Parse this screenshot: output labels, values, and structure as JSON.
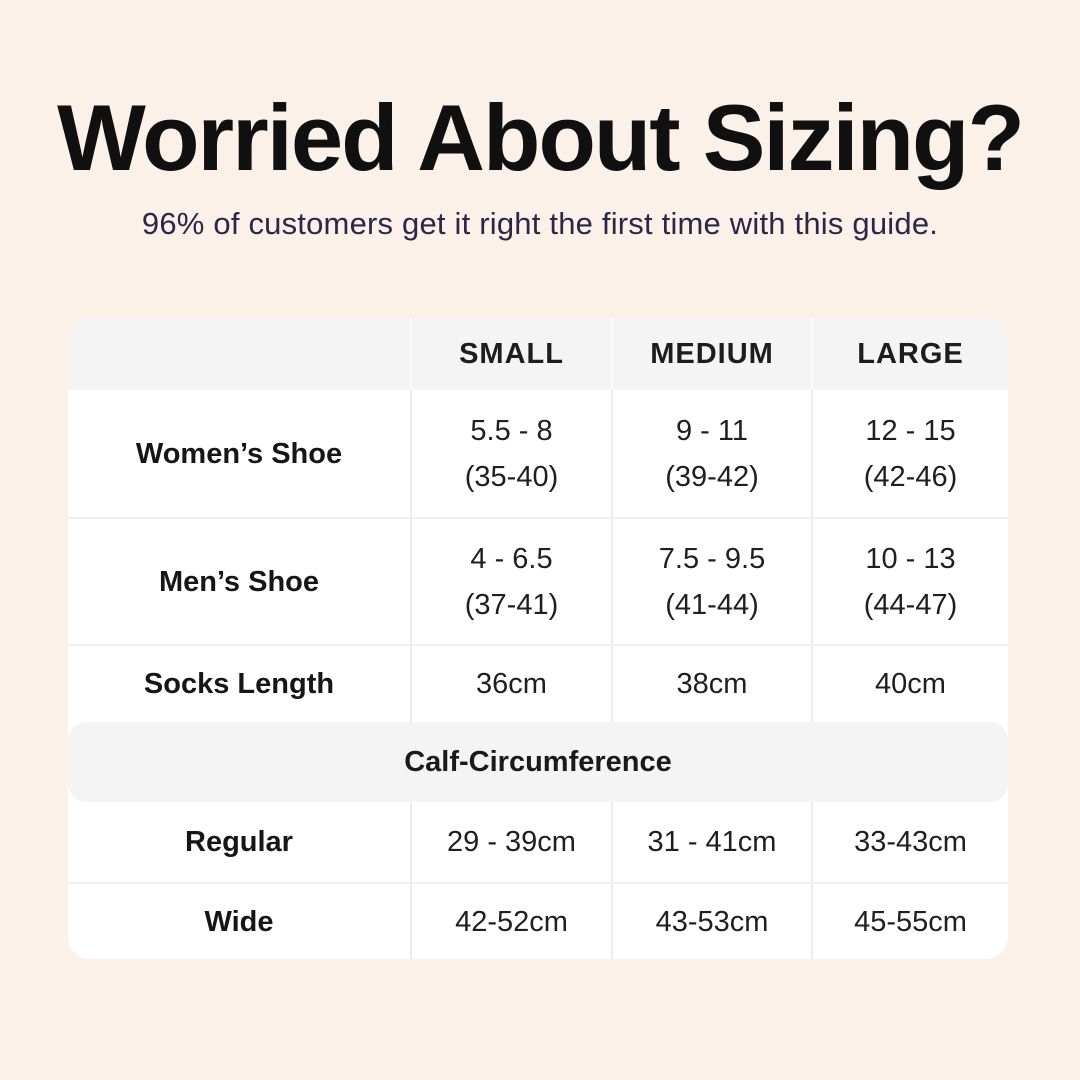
{
  "page": {
    "title": "Worried About Sizing?",
    "subtitle": "96% of customers get it right the first time with this guide."
  },
  "colors": {
    "page_background": "#FCF1E9",
    "title_text": "#101010",
    "subtitle_text": "#2A2747",
    "table_background": "#FFFFFF",
    "header_band_background": "#F4F4F5",
    "divider": "#ECECEC",
    "cell_text": "#1F1F1F"
  },
  "table": {
    "column_headers": [
      "SMALL",
      "MEDIUM",
      "LARGE"
    ],
    "rows": [
      {
        "label": "Women’s Shoe",
        "small": [
          "5.5 - 8",
          "(35-40)"
        ],
        "medium": [
          "9 - 11",
          "(39-42)"
        ],
        "large": [
          "12 - 15",
          "(42-46)"
        ]
      },
      {
        "label": "Men’s Shoe",
        "small": [
          "4 - 6.5",
          "(37-41)"
        ],
        "medium": [
          "7.5 - 9.5",
          "(41-44)"
        ],
        "large": [
          "10 - 13",
          "(44-47)"
        ]
      },
      {
        "label": "Socks Length",
        "small": [
          "36cm"
        ],
        "medium": [
          "38cm"
        ],
        "large": [
          "40cm"
        ]
      }
    ],
    "section_header": "Calf-Circumference",
    "section_rows": [
      {
        "label": "Regular",
        "small": [
          "29 - 39cm"
        ],
        "medium": [
          "31 - 41cm"
        ],
        "large": [
          "33-43cm"
        ]
      },
      {
        "label": "Wide",
        "small": [
          "42-52cm"
        ],
        "medium": [
          "43-53cm"
        ],
        "large": [
          "45-55cm"
        ]
      }
    ]
  }
}
